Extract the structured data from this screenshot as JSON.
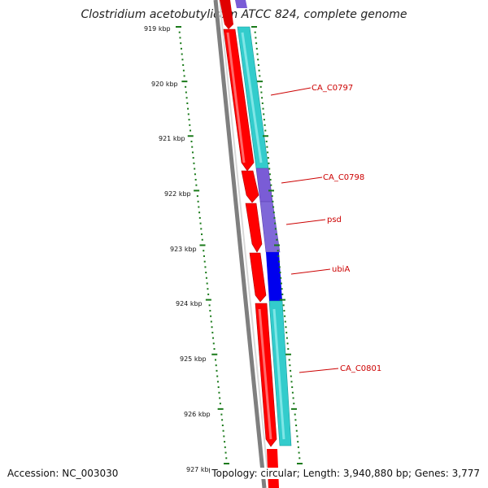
{
  "title": "Clostridium acetobutylicum ATCC 824, complete genome",
  "accession": "Accession: NC_003030",
  "summary": "Topology: circular; Length: 3,940,880 bp; Genes: 3,777",
  "kbp_labels": [
    "919 kbp",
    "920 kbp",
    "921 kbp",
    "922 kbp",
    "923 kbp",
    "924 kbp",
    "925 kbp",
    "926 kbp",
    "927 kbp"
  ],
  "gene_labels": [
    "CA_C0797",
    "CA_C0798",
    "psd",
    "ubiA",
    "CA_C0801"
  ],
  "colors": {
    "gene_red": "#ff0000",
    "cds_cyan": "#33cccc",
    "cds_purple": "#7a5cd6",
    "cds_blue": "#0000ee",
    "backbone_gray": "#808080",
    "tick_green": "#1a7a1a",
    "label_red": "#cc0000"
  }
}
